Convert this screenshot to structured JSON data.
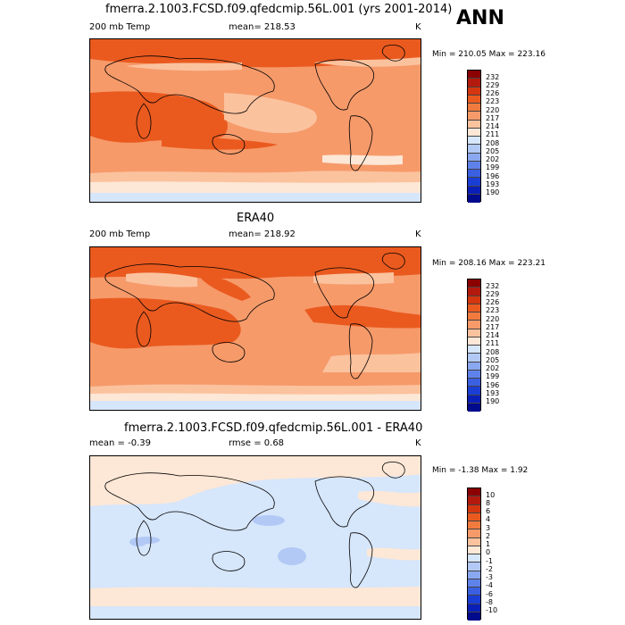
{
  "season_label": "ANN",
  "panels": [
    {
      "title": "fmerra.2.1003.FCSD.f09.qfedcmip.56L.001 (yrs 2001-2014)",
      "left_label": "200 mb Temp",
      "center_label": "mean= 218.53",
      "unit_label": "K",
      "minmax_label": "Min = 210.05 Max = 223.16",
      "colorbar_levels": [
        "232",
        "229",
        "226",
        "223",
        "220",
        "217",
        "214",
        "211",
        "208",
        "205",
        "202",
        "199",
        "196",
        "193",
        "190"
      ],
      "colorbar_colors": [
        "#8b0000",
        "#b3190c",
        "#d4360f",
        "#ea5a1f",
        "#f17b3f",
        "#f69a6a",
        "#fbc29e",
        "#fde7d6",
        "#d6e6fb",
        "#b2c9f6",
        "#8aa8f0",
        "#5f82ea",
        "#3a5fe0",
        "#1a3dd4",
        "#0a1fb8",
        "#000a8c"
      ]
    },
    {
      "title": "ERA40",
      "left_label": "200 mb Temp",
      "center_label": "mean= 218.92",
      "unit_label": "K",
      "minmax_label": "Min = 208.16 Max = 223.21",
      "colorbar_levels": [
        "232",
        "229",
        "226",
        "223",
        "220",
        "217",
        "214",
        "211",
        "208",
        "205",
        "202",
        "199",
        "196",
        "193",
        "190"
      ],
      "colorbar_colors": [
        "#8b0000",
        "#b3190c",
        "#d4360f",
        "#ea5a1f",
        "#f17b3f",
        "#f69a6a",
        "#fbc29e",
        "#fde7d6",
        "#d6e6fb",
        "#b2c9f6",
        "#8aa8f0",
        "#5f82ea",
        "#3a5fe0",
        "#1a3dd4",
        "#0a1fb8",
        "#000a8c"
      ]
    },
    {
      "title": "fmerra.2.1003.FCSD.f09.qfedcmip.56L.001 - ERA40",
      "left_label": "mean = -0.39",
      "center_label": "rmse = 0.68",
      "unit_label": "K",
      "minmax_label": "Min = -1.38 Max = 1.92",
      "colorbar_levels": [
        "10",
        "8",
        "6",
        "4",
        "3",
        "2",
        "1",
        "0",
        "-1",
        "-2",
        "-3",
        "-4",
        "-6",
        "-8",
        "-10"
      ],
      "colorbar_colors": [
        "#8b0000",
        "#b3190c",
        "#d4360f",
        "#ea5a1f",
        "#f17b3f",
        "#f69a6a",
        "#fbc29e",
        "#fde7d6",
        "#d6e6fb",
        "#b2c9f6",
        "#8aa8f0",
        "#5f82ea",
        "#3a5fe0",
        "#1a3dd4",
        "#0a1fb8",
        "#000a8c"
      ]
    }
  ]
}
